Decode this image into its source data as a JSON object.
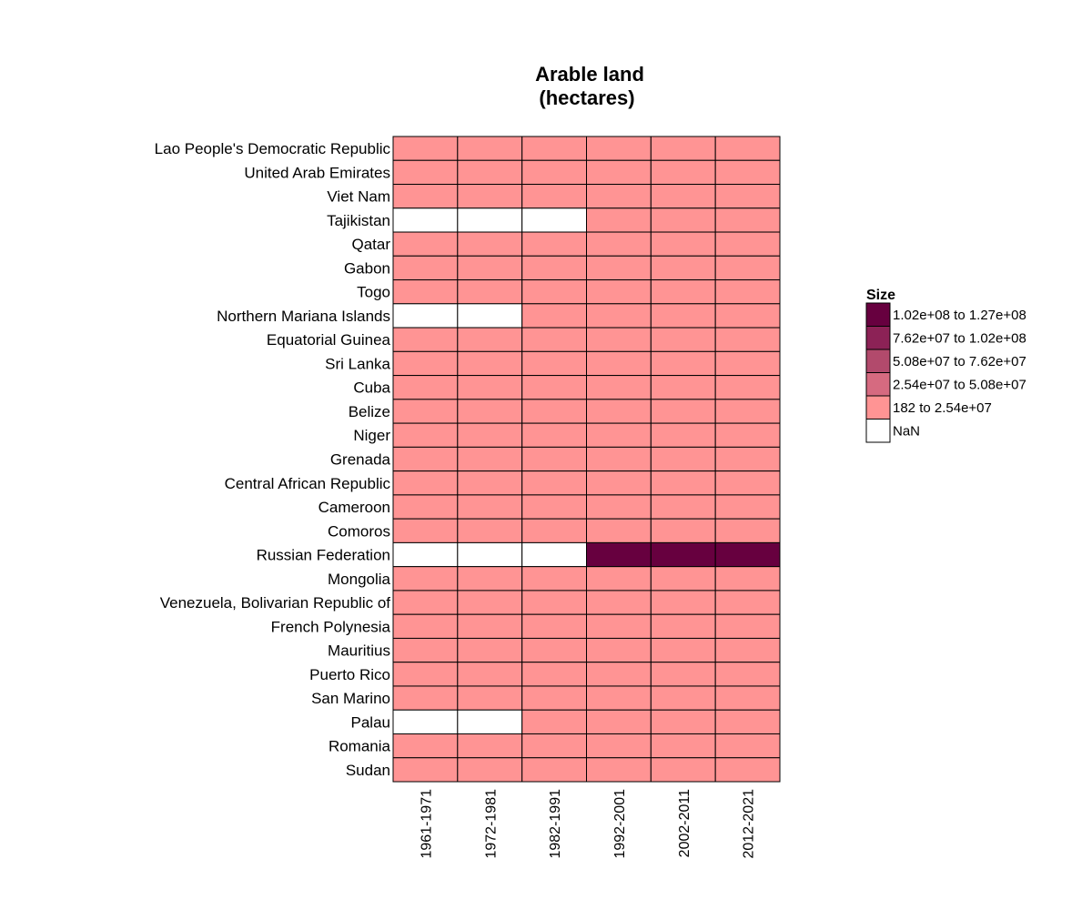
{
  "chart_data": {
    "type": "heatmap",
    "title": [
      "Arable land",
      "(hectares)"
    ],
    "x": [
      "1961-1971",
      "1972-1981",
      "1982-1991",
      "1992-2001",
      "2002-2011",
      "2012-2021"
    ],
    "y": [
      "Lao People's Democratic Republic",
      "United Arab Emirates",
      "Viet Nam",
      "Tajikistan",
      "Qatar",
      "Gabon",
      "Togo",
      "Northern Mariana Islands",
      "Equatorial Guinea",
      "Sri Lanka",
      "Cuba",
      "Belize",
      "Niger",
      "Grenada",
      "Central African Republic",
      "Cameroon",
      "Comoros",
      "Russian Federation",
      "Mongolia",
      "Venezuela, Bolivarian Republic of",
      "French Polynesia",
      "Mauritius",
      "Puerto Rico",
      "San Marino",
      "Palau",
      "Romania",
      "Sudan"
    ],
    "bins": [
      {
        "label": "1.02e+08 to 1.27e+08",
        "color": "#67003f"
      },
      {
        "label": "7.62e+07 to 1.02e+08",
        "color": "#8c2256"
      },
      {
        "label": "5.08e+07 to 7.62e+07",
        "color": "#b24a6c"
      },
      {
        "label": "2.54e+07 to 5.08e+07",
        "color": "#d66a80"
      },
      {
        "label": "182 to 2.54e+07",
        "color": "#ff9494"
      },
      {
        "label": "NaN",
        "color": "#ffffff"
      }
    ],
    "legend_title": "Size",
    "legend_position": "right",
    "cells": [
      [
        "182 to 2.54e+07",
        "182 to 2.54e+07",
        "182 to 2.54e+07",
        "182 to 2.54e+07",
        "182 to 2.54e+07",
        "182 to 2.54e+07"
      ],
      [
        "182 to 2.54e+07",
        "182 to 2.54e+07",
        "182 to 2.54e+07",
        "182 to 2.54e+07",
        "182 to 2.54e+07",
        "182 to 2.54e+07"
      ],
      [
        "182 to 2.54e+07",
        "182 to 2.54e+07",
        "182 to 2.54e+07",
        "182 to 2.54e+07",
        "182 to 2.54e+07",
        "182 to 2.54e+07"
      ],
      [
        "NaN",
        "NaN",
        "NaN",
        "182 to 2.54e+07",
        "182 to 2.54e+07",
        "182 to 2.54e+07"
      ],
      [
        "182 to 2.54e+07",
        "182 to 2.54e+07",
        "182 to 2.54e+07",
        "182 to 2.54e+07",
        "182 to 2.54e+07",
        "182 to 2.54e+07"
      ],
      [
        "182 to 2.54e+07",
        "182 to 2.54e+07",
        "182 to 2.54e+07",
        "182 to 2.54e+07",
        "182 to 2.54e+07",
        "182 to 2.54e+07"
      ],
      [
        "182 to 2.54e+07",
        "182 to 2.54e+07",
        "182 to 2.54e+07",
        "182 to 2.54e+07",
        "182 to 2.54e+07",
        "182 to 2.54e+07"
      ],
      [
        "NaN",
        "NaN",
        "182 to 2.54e+07",
        "182 to 2.54e+07",
        "182 to 2.54e+07",
        "182 to 2.54e+07"
      ],
      [
        "182 to 2.54e+07",
        "182 to 2.54e+07",
        "182 to 2.54e+07",
        "182 to 2.54e+07",
        "182 to 2.54e+07",
        "182 to 2.54e+07"
      ],
      [
        "182 to 2.54e+07",
        "182 to 2.54e+07",
        "182 to 2.54e+07",
        "182 to 2.54e+07",
        "182 to 2.54e+07",
        "182 to 2.54e+07"
      ],
      [
        "182 to 2.54e+07",
        "182 to 2.54e+07",
        "182 to 2.54e+07",
        "182 to 2.54e+07",
        "182 to 2.54e+07",
        "182 to 2.54e+07"
      ],
      [
        "182 to 2.54e+07",
        "182 to 2.54e+07",
        "182 to 2.54e+07",
        "182 to 2.54e+07",
        "182 to 2.54e+07",
        "182 to 2.54e+07"
      ],
      [
        "182 to 2.54e+07",
        "182 to 2.54e+07",
        "182 to 2.54e+07",
        "182 to 2.54e+07",
        "182 to 2.54e+07",
        "182 to 2.54e+07"
      ],
      [
        "182 to 2.54e+07",
        "182 to 2.54e+07",
        "182 to 2.54e+07",
        "182 to 2.54e+07",
        "182 to 2.54e+07",
        "182 to 2.54e+07"
      ],
      [
        "182 to 2.54e+07",
        "182 to 2.54e+07",
        "182 to 2.54e+07",
        "182 to 2.54e+07",
        "182 to 2.54e+07",
        "182 to 2.54e+07"
      ],
      [
        "182 to 2.54e+07",
        "182 to 2.54e+07",
        "182 to 2.54e+07",
        "182 to 2.54e+07",
        "182 to 2.54e+07",
        "182 to 2.54e+07"
      ],
      [
        "182 to 2.54e+07",
        "182 to 2.54e+07",
        "182 to 2.54e+07",
        "182 to 2.54e+07",
        "182 to 2.54e+07",
        "182 to 2.54e+07"
      ],
      [
        "NaN",
        "NaN",
        "NaN",
        "1.02e+08 to 1.27e+08",
        "1.02e+08 to 1.27e+08",
        "1.02e+08 to 1.27e+08"
      ],
      [
        "182 to 2.54e+07",
        "182 to 2.54e+07",
        "182 to 2.54e+07",
        "182 to 2.54e+07",
        "182 to 2.54e+07",
        "182 to 2.54e+07"
      ],
      [
        "182 to 2.54e+07",
        "182 to 2.54e+07",
        "182 to 2.54e+07",
        "182 to 2.54e+07",
        "182 to 2.54e+07",
        "182 to 2.54e+07"
      ],
      [
        "182 to 2.54e+07",
        "182 to 2.54e+07",
        "182 to 2.54e+07",
        "182 to 2.54e+07",
        "182 to 2.54e+07",
        "182 to 2.54e+07"
      ],
      [
        "182 to 2.54e+07",
        "182 to 2.54e+07",
        "182 to 2.54e+07",
        "182 to 2.54e+07",
        "182 to 2.54e+07",
        "182 to 2.54e+07"
      ],
      [
        "182 to 2.54e+07",
        "182 to 2.54e+07",
        "182 to 2.54e+07",
        "182 to 2.54e+07",
        "182 to 2.54e+07",
        "182 to 2.54e+07"
      ],
      [
        "182 to 2.54e+07",
        "182 to 2.54e+07",
        "182 to 2.54e+07",
        "182 to 2.54e+07",
        "182 to 2.54e+07",
        "182 to 2.54e+07"
      ],
      [
        "NaN",
        "NaN",
        "182 to 2.54e+07",
        "182 to 2.54e+07",
        "182 to 2.54e+07",
        "182 to 2.54e+07"
      ],
      [
        "182 to 2.54e+07",
        "182 to 2.54e+07",
        "182 to 2.54e+07",
        "182 to 2.54e+07",
        "182 to 2.54e+07",
        "182 to 2.54e+07"
      ],
      [
        "182 to 2.54e+07",
        "182 to 2.54e+07",
        "182 to 2.54e+07",
        "182 to 2.54e+07",
        "182 to 2.54e+07",
        "182 to 2.54e+07"
      ]
    ]
  }
}
